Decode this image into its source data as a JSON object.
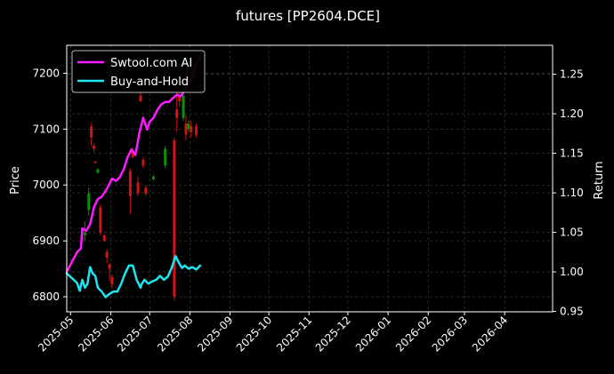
{
  "chart_data": {
    "type": "line",
    "title": "futures [PP2604.DCE]",
    "ylabel_left": "Price",
    "ylabel_right": "Return",
    "grid": true,
    "legend_position": "top-left",
    "xlim": [
      "2025-04-28",
      "2026-05-08"
    ],
    "ylim_left": [
      6773,
      7250
    ],
    "ylim_right": [
      0.9495,
      1.2866
    ],
    "x_ticks": [
      "2025-05",
      "2025-06",
      "2025-07",
      "2025-08",
      "2025-09",
      "2025-10",
      "2025-11",
      "2025-12",
      "2026-01",
      "2026-02",
      "2026-03",
      "2026-04"
    ],
    "y_ticks_left": [
      6800,
      6900,
      7000,
      7100,
      7200
    ],
    "y_ticks_right": [
      0.95,
      1.0,
      1.05,
      1.1,
      1.15,
      1.2,
      1.25
    ],
    "colors": {
      "background": "#000000",
      "grid": "#444444",
      "text": "#ffffff",
      "strategy": "#ff1aff",
      "buy_hold": "#1ee6f0",
      "candle_up": "#0a8f0a",
      "candle_down": "#d01515"
    },
    "series": [
      {
        "name": "Swtool.com AI",
        "axis": "right",
        "x": [
          "2025-04-28",
          "2025-05-06",
          "2025-05-09",
          "2025-05-10",
          "2025-05-13",
          "2025-05-16",
          "2025-05-19",
          "2025-05-22",
          "2025-05-25",
          "2025-05-29",
          "2025-06-02",
          "2025-06-05",
          "2025-06-08",
          "2025-06-11",
          "2025-06-14",
          "2025-06-17",
          "2025-06-20",
          "2025-06-23",
          "2025-06-26",
          "2025-06-29",
          "2025-07-01",
          "2025-07-04",
          "2025-07-07",
          "2025-07-10",
          "2025-07-13",
          "2025-07-16",
          "2025-07-19",
          "2025-07-22",
          "2025-07-25",
          "2025-07-28",
          "2025-07-31",
          "2025-08-03",
          "2025-08-06",
          "2025-08-09"
        ],
        "values": [
          1.0,
          1.025,
          1.03,
          1.055,
          1.052,
          1.06,
          1.082,
          1.092,
          1.095,
          1.105,
          1.118,
          1.115,
          1.12,
          1.13,
          1.145,
          1.155,
          1.148,
          1.175,
          1.195,
          1.18,
          1.19,
          1.195,
          1.205,
          1.212,
          1.215,
          1.215,
          1.22,
          1.224,
          1.222,
          1.23,
          1.238,
          1.245,
          1.265,
          1.272
        ]
      },
      {
        "name": "Buy-and-Hold",
        "axis": "right",
        "x": [
          "2025-04-28",
          "2025-05-06",
          "2025-05-08",
          "2025-05-10",
          "2025-05-12",
          "2025-05-14",
          "2025-05-16",
          "2025-05-18",
          "2025-05-20",
          "2025-05-22",
          "2025-05-25",
          "2025-05-28",
          "2025-05-31",
          "2025-06-03",
          "2025-06-06",
          "2025-06-09",
          "2025-06-12",
          "2025-06-15",
          "2025-06-18",
          "2025-06-21",
          "2025-06-24",
          "2025-06-25",
          "2025-06-27",
          "2025-06-30",
          "2025-07-03",
          "2025-07-06",
          "2025-07-09",
          "2025-07-12",
          "2025-07-15",
          "2025-07-18",
          "2025-07-21",
          "2025-07-24",
          "2025-07-26",
          "2025-07-28",
          "2025-07-31",
          "2025-08-03",
          "2025-08-06",
          "2025-08-09"
        ],
        "values": [
          0.998,
          0.986,
          0.976,
          0.99,
          0.98,
          0.985,
          1.006,
          0.998,
          0.995,
          0.98,
          0.975,
          0.968,
          0.972,
          0.975,
          0.975,
          0.985,
          0.998,
          1.008,
          1.008,
          0.99,
          0.98,
          0.985,
          0.99,
          0.985,
          0.988,
          0.99,
          0.995,
          0.99,
          0.994,
          1.005,
          1.02,
          1.01,
          1.005,
          1.008,
          1.004,
          1.006,
          1.003,
          1.008
        ]
      }
    ],
    "candles": [
      {
        "x": "2025-05-12",
        "open": 6910,
        "close": 6915,
        "high": 6935,
        "low": 6900
      },
      {
        "x": "2025-05-15",
        "open": 6955,
        "close": 6985,
        "high": 6995,
        "low": 6945
      },
      {
        "x": "2025-05-17",
        "open": 7105,
        "close": 7085,
        "high": 7110,
        "low": 7070
      },
      {
        "x": "2025-05-19",
        "open": 7070,
        "close": 7065,
        "high": 7075,
        "low": 7060
      },
      {
        "x": "2025-05-20",
        "open": 7042,
        "close": 7040,
        "high": 7043,
        "low": 7039
      },
      {
        "x": "2025-05-22",
        "open": 7022,
        "close": 7028,
        "high": 7030,
        "low": 7020
      },
      {
        "x": "2025-05-24",
        "open": 6960,
        "close": 6915,
        "high": 6965,
        "low": 6910
      },
      {
        "x": "2025-05-27",
        "open": 6910,
        "close": 6900,
        "high": 6912,
        "low": 6898
      },
      {
        "x": "2025-05-29",
        "open": 6880,
        "close": 6870,
        "high": 6885,
        "low": 6860
      },
      {
        "x": "2025-05-31",
        "open": 6858,
        "close": 6850,
        "high": 6860,
        "low": 6828
      },
      {
        "x": "2025-06-02",
        "open": 6835,
        "close": 6822,
        "high": 6840,
        "low": 6815
      },
      {
        "x": "2025-06-16",
        "open": 7025,
        "close": 6980,
        "high": 7030,
        "low": 6948
      },
      {
        "x": "2025-06-18",
        "open": 7060,
        "close": 7050,
        "high": 7062,
        "low": 7048
      },
      {
        "x": "2025-06-22",
        "open": 7005,
        "close": 6985,
        "high": 7015,
        "low": 6980
      },
      {
        "x": "2025-06-24",
        "open": 7160,
        "close": 7150,
        "high": 7170,
        "low": 7148
      },
      {
        "x": "2025-06-26",
        "open": 7045,
        "close": 7035,
        "high": 7050,
        "low": 7030
      },
      {
        "x": "2025-06-28",
        "open": 6995,
        "close": 6985,
        "high": 7000,
        "low": 6980
      },
      {
        "x": "2025-07-04",
        "open": 7010,
        "close": 7015,
        "high": 7018,
        "low": 7008
      },
      {
        "x": "2025-07-13",
        "open": 7035,
        "close": 7065,
        "high": 7070,
        "low": 7030
      },
      {
        "x": "2025-07-20",
        "open": 7080,
        "close": 6800,
        "high": 7085,
        "low": 6793
      },
      {
        "x": "2025-07-22",
        "open": 7135,
        "close": 7120,
        "high": 7220,
        "low": 7095
      },
      {
        "x": "2025-07-24",
        "open": 7160,
        "close": 7150,
        "high": 7175,
        "low": 7140
      },
      {
        "x": "2025-07-27",
        "open": 7120,
        "close": 7160,
        "high": 7165,
        "low": 7115
      },
      {
        "x": "2025-07-29",
        "open": 7110,
        "close": 7090,
        "high": 7125,
        "low": 7080
      },
      {
        "x": "2025-07-31",
        "open": 7100,
        "close": 7110,
        "high": 7115,
        "low": 7095
      },
      {
        "x": "2025-08-02",
        "open": 7105,
        "close": 7095,
        "high": 7115,
        "low": 7085
      },
      {
        "x": "2025-08-06",
        "open": 7105,
        "close": 7090,
        "high": 7110,
        "low": 7085
      }
    ]
  }
}
